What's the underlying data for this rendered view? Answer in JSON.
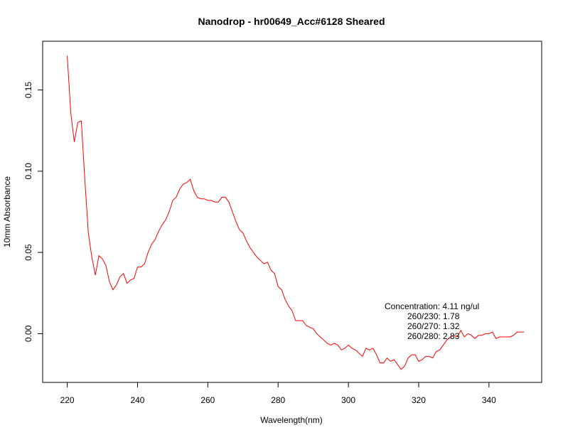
{
  "chart_data": {
    "type": "line",
    "title": "Nanodrop - hr00649_Acc#6128 Sheared",
    "xlabel": "Wavelength(nm)",
    "ylabel": "10mm Absorbance",
    "xlim": [
      213,
      355
    ],
    "ylim": [
      -0.03,
      0.18
    ],
    "x_ticks": [
      "220",
      "240",
      "260",
      "280",
      "300",
      "320",
      "340"
    ],
    "y_ticks": [
      "0.00",
      "0.05",
      "0.10",
      "0.15"
    ],
    "grid": false,
    "series": [
      {
        "color": "#ff0000",
        "x": [
          220,
          221,
          222,
          223,
          224,
          225,
          226,
          227,
          228,
          229,
          230,
          231,
          232,
          233,
          234,
          235,
          236,
          237,
          238,
          239,
          240,
          241,
          242,
          243,
          244,
          245,
          246,
          247,
          248,
          249,
          250,
          251,
          252,
          253,
          254,
          255,
          256,
          257,
          258,
          259,
          260,
          261,
          262,
          263,
          264,
          265,
          266,
          267,
          268,
          269,
          270,
          271,
          272,
          273,
          274,
          275,
          276,
          277,
          278,
          279,
          280,
          281,
          282,
          283,
          284,
          285,
          286,
          287,
          288,
          289,
          290,
          291,
          292,
          293,
          294,
          295,
          296,
          297,
          298,
          299,
          300,
          301,
          302,
          303,
          304,
          305,
          306,
          307,
          308,
          309,
          310,
          311,
          312,
          313,
          314,
          315,
          316,
          317,
          318,
          319,
          320,
          321,
          322,
          323,
          324,
          325,
          326,
          327,
          328,
          329,
          330,
          331,
          332,
          333,
          334,
          335,
          336,
          337,
          338,
          339,
          340,
          341,
          342,
          343,
          344,
          345,
          346,
          347,
          348,
          349,
          350
        ],
        "y": [
          0.171,
          0.136,
          0.118,
          0.13,
          0.131,
          0.095,
          0.062,
          0.047,
          0.036,
          0.048,
          0.046,
          0.042,
          0.032,
          0.027,
          0.03,
          0.035,
          0.037,
          0.031,
          0.033,
          0.034,
          0.041,
          0.041,
          0.043,
          0.05,
          0.055,
          0.058,
          0.063,
          0.067,
          0.07,
          0.075,
          0.082,
          0.084,
          0.089,
          0.092,
          0.093,
          0.095,
          0.088,
          0.084,
          0.083,
          0.083,
          0.082,
          0.082,
          0.081,
          0.081,
          0.084,
          0.084,
          0.081,
          0.075,
          0.069,
          0.064,
          0.062,
          0.057,
          0.053,
          0.05,
          0.047,
          0.045,
          0.043,
          0.044,
          0.039,
          0.037,
          0.029,
          0.027,
          0.021,
          0.017,
          0.014,
          0.008,
          0.008,
          0.008,
          0.005,
          0.004,
          0.003,
          0.0,
          -0.002,
          -0.004,
          -0.006,
          -0.007,
          -0.006,
          -0.007,
          -0.01,
          -0.009,
          -0.007,
          -0.009,
          -0.01,
          -0.012,
          -0.014,
          -0.009,
          -0.01,
          -0.009,
          -0.013,
          -0.018,
          -0.018,
          -0.015,
          -0.017,
          -0.016,
          -0.019,
          -0.022,
          -0.02,
          -0.015,
          -0.013,
          -0.013,
          -0.017,
          -0.016,
          -0.014,
          -0.014,
          -0.015,
          -0.011,
          -0.01,
          -0.007,
          -0.004,
          -0.002,
          -0.001,
          -0.002,
          0.002,
          -0.002,
          0.0,
          -0.001,
          -0.003,
          -0.001,
          -0.001,
          0.0,
          0.0,
          0.001,
          -0.003,
          -0.002,
          -0.002,
          -0.002,
          -0.002,
          -0.001,
          0.001,
          0.001,
          0.001
        ]
      }
    ],
    "annotations": [
      "Concentration: 4.11 ng/ul",
      "260/230: 1.78",
      "260/270: 1.32",
      "260/280: 2.83"
    ]
  }
}
